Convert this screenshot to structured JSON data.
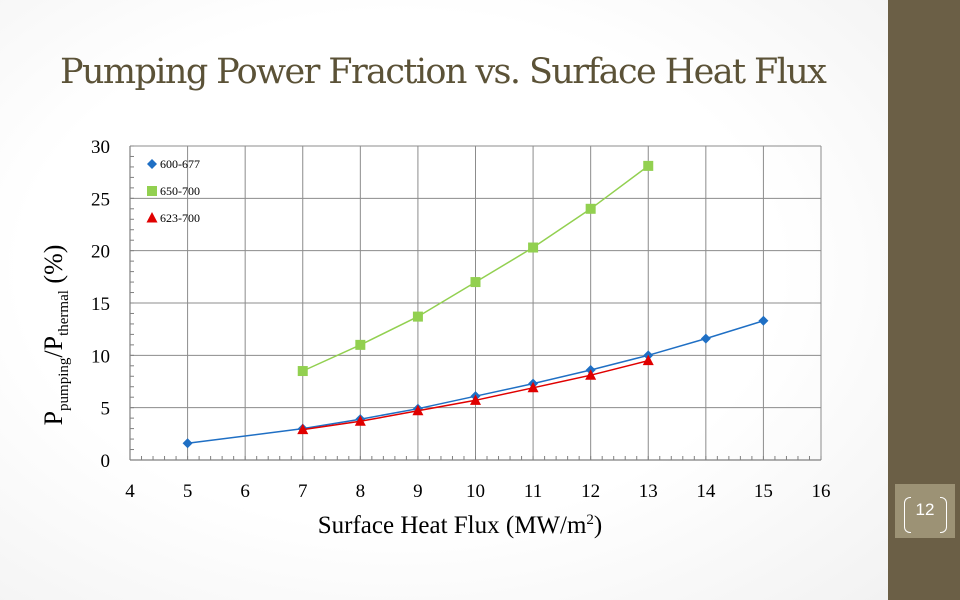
{
  "slide": {
    "title": "Pumping Power Fraction vs. Surface Heat Flux",
    "page_number": "12",
    "colors": {
      "sidebar": "#6b5f46",
      "page_box": "#9c9275",
      "title": "#5b5237"
    }
  },
  "chart_data": {
    "type": "line",
    "title": "",
    "xlabel": "Surface Heat Flux (MW/m²)",
    "xlabel_parts": {
      "main": "Surface Heat Flux (MW/m",
      "sup": "2",
      "end": ")"
    },
    "ylabel": "P_pumping/P_thermal (%)",
    "ylabel_parts": {
      "p1": "P",
      "sub1": "pumping",
      "slash": "/P",
      "sub2": "thermal",
      "unit": " (%)"
    },
    "xlim": [
      4,
      16
    ],
    "ylim": [
      0,
      30
    ],
    "xticks": [
      4,
      5,
      6,
      7,
      8,
      9,
      10,
      11,
      12,
      13,
      14,
      15,
      16
    ],
    "yticks": [
      0,
      5,
      10,
      15,
      20,
      25,
      30
    ],
    "grid": true,
    "legend_position": "top-left",
    "series": [
      {
        "name": "600-677",
        "color": "#1f6fc4",
        "marker": "diamond",
        "x": [
          5,
          7,
          8,
          9,
          10,
          11,
          12,
          13,
          14,
          15
        ],
        "y": [
          1.6,
          3.0,
          3.9,
          4.9,
          6.1,
          7.3,
          8.6,
          10.0,
          11.6,
          13.3
        ]
      },
      {
        "name": "650-700",
        "color": "#92d050",
        "marker": "square",
        "x": [
          7,
          8,
          9,
          10,
          11,
          12,
          13
        ],
        "y": [
          8.5,
          11.0,
          13.7,
          17.0,
          20.3,
          24.0,
          28.1
        ]
      },
      {
        "name": "623-700",
        "color": "#e00000",
        "marker": "triangle",
        "x": [
          7,
          8,
          9,
          10,
          11,
          12,
          13
        ],
        "y": [
          2.9,
          3.7,
          4.7,
          5.7,
          6.9,
          8.1,
          9.5
        ]
      }
    ]
  }
}
